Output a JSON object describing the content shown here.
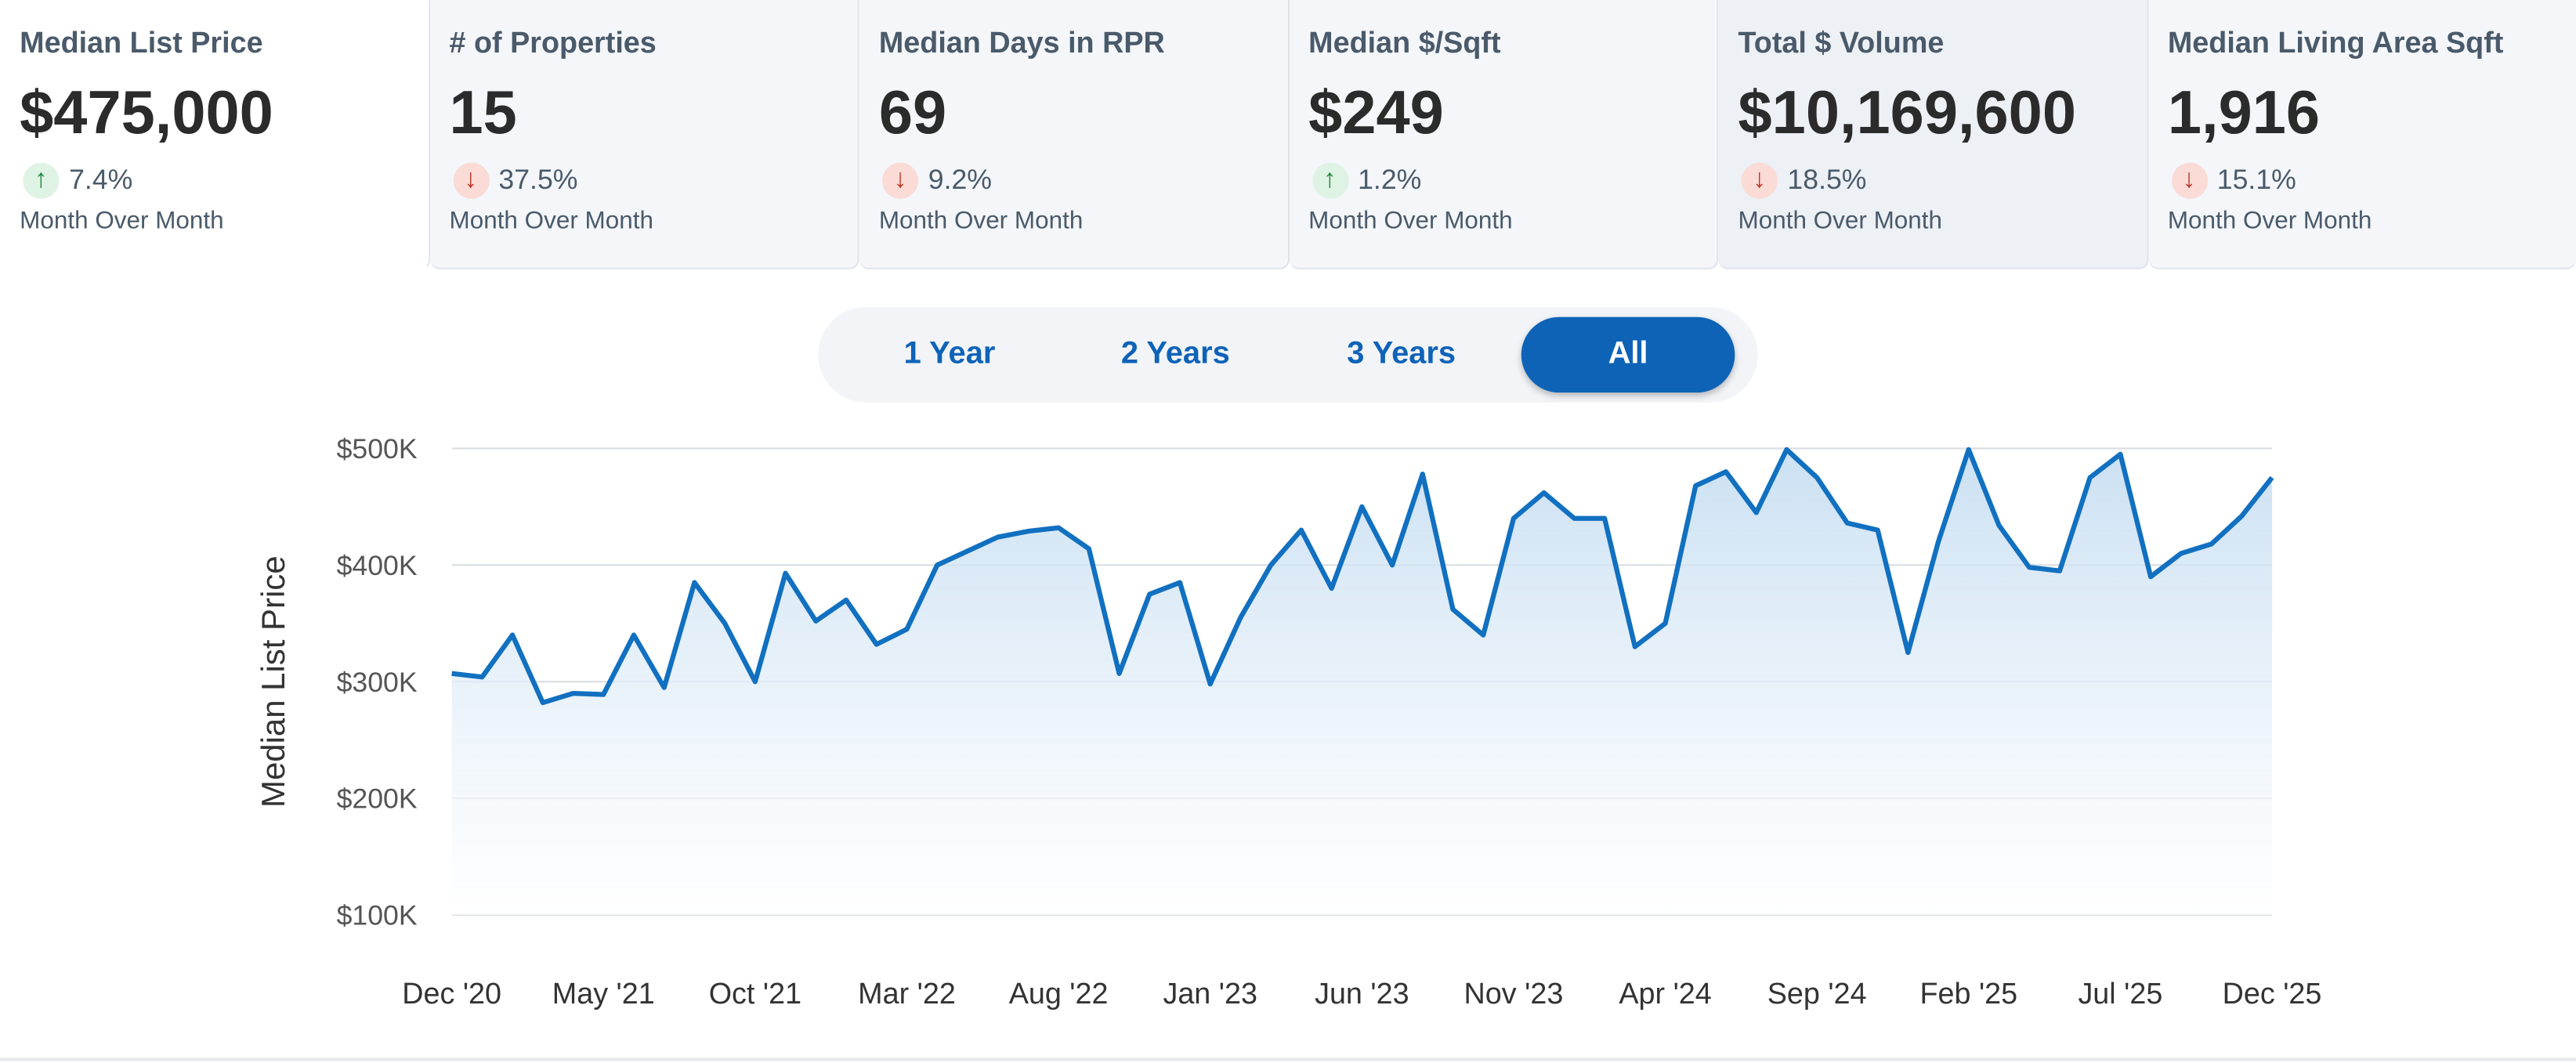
{
  "tiles": [
    {
      "title": "Median List Price",
      "value": "$475,000",
      "direction": "up",
      "change": "7.4%",
      "period": "Month Over Month"
    },
    {
      "title": "# of Properties",
      "value": "15",
      "direction": "down",
      "change": "37.5%",
      "period": "Month Over Month"
    },
    {
      "title": "Median Days in RPR",
      "value": "69",
      "direction": "down",
      "change": "9.2%",
      "period": "Month Over Month"
    },
    {
      "title": "Median $/Sqft",
      "value": "$249",
      "direction": "up",
      "change": "1.2%",
      "period": "Month Over Month"
    },
    {
      "title": "Total $ Volume",
      "value": "$10,169,600",
      "direction": "down",
      "change": "18.5%",
      "period": "Month Over Month"
    },
    {
      "title": "Median Living Area Sqft",
      "value": "1,916",
      "direction": "down",
      "change": "15.1%",
      "period": "Month Over Month"
    }
  ],
  "icons": {
    "up": "arrow-up-icon",
    "down": "arrow-down-icon"
  },
  "range_buttons": [
    "1 Year",
    "2 Years",
    "3 Years",
    "All"
  ],
  "selected_range": "All",
  "colors": {
    "line": "#1170c0",
    "accent": "#0e63b7",
    "up": "#1f8a3d",
    "down": "#c0392b"
  },
  "chart_data": {
    "type": "area",
    "ylabel": "Median List Price",
    "ylim": [
      100000,
      500000
    ],
    "y_ticks": [
      {
        "value": 500000,
        "label": "$500K"
      },
      {
        "value": 400000,
        "label": "$400K"
      },
      {
        "value": 300000,
        "label": "$300K"
      },
      {
        "value": 200000,
        "label": "$200K"
      },
      {
        "value": 100000,
        "label": "$100K"
      }
    ],
    "x_tick_labels": [
      "Dec '20",
      "May '21",
      "Oct '21",
      "Mar '22",
      "Aug '22",
      "Jan '23",
      "Jun '23",
      "Nov '23",
      "Apr '24",
      "Sep '24",
      "Feb '25",
      "Jul '25",
      "Dec '25"
    ],
    "x": [
      "Dec '20",
      "Jan '21",
      "Feb '21",
      "Mar '21",
      "Apr '21",
      "May '21",
      "Jun '21",
      "Jul '21",
      "Aug '21",
      "Sep '21",
      "Oct '21",
      "Nov '21",
      "Dec '21",
      "Jan '22",
      "Feb '22",
      "Mar '22",
      "Apr '22",
      "May '22",
      "Jun '22",
      "Jul '22",
      "Aug '22",
      "Sep '22",
      "Oct '22",
      "Nov '22",
      "Dec '22",
      "Jan '23",
      "Feb '23",
      "Mar '23",
      "Apr '23",
      "May '23",
      "Jun '23",
      "Jul '23",
      "Aug '23",
      "Sep '23",
      "Oct '23",
      "Nov '23",
      "Dec '23",
      "Jan '24",
      "Feb '24",
      "Mar '24",
      "Apr '24",
      "May '24",
      "Jun '24",
      "Jul '24",
      "Aug '24",
      "Sep '24",
      "Oct '24",
      "Nov '24",
      "Dec '24",
      "Jan '25",
      "Feb '25",
      "Mar '25",
      "Apr '25",
      "May '25",
      "Jun '25",
      "Jul '25",
      "Aug '25",
      "Sep '25",
      "Oct '25",
      "Nov '25",
      "Dec '25"
    ],
    "series": [
      {
        "values": [
          307000,
          304000,
          340000,
          282000,
          290000,
          289000,
          340000,
          295000,
          385000,
          350000,
          300000,
          393000,
          352000,
          370000,
          332000,
          345000,
          400000,
          412000,
          424000,
          429000,
          432000,
          414000,
          307000,
          375000,
          385000,
          298000,
          355000,
          400000,
          430000,
          380000,
          450000,
          400000,
          478000,
          362000,
          340000,
          440000,
          462000,
          440000,
          440000,
          330000,
          350000,
          468000,
          480000,
          445000,
          499000,
          475000,
          436000,
          430000,
          325000,
          420000,
          499000,
          434000,
          398000,
          395000,
          475000,
          495000,
          390000,
          410000,
          418000,
          442000,
          475000
        ]
      }
    ],
    "grid": true
  }
}
